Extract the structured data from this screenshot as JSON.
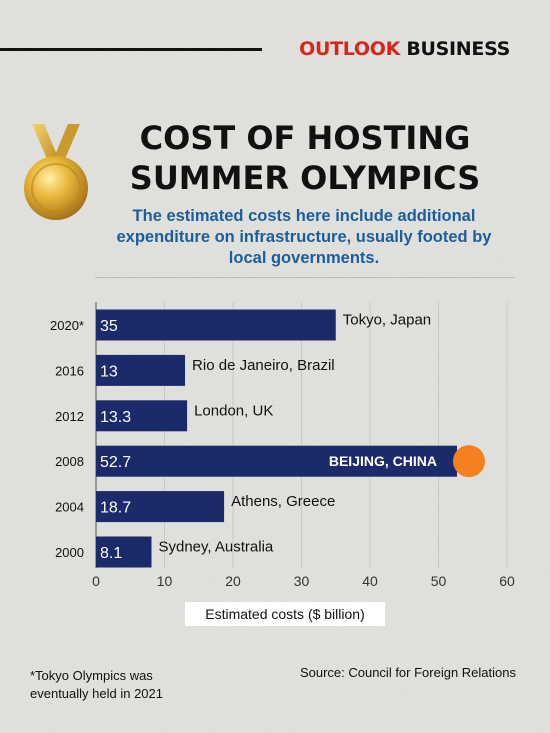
{
  "brand": {
    "part1": "OUTLOOK",
    "part2": " BUSINESS"
  },
  "title_line1": "COST OF HOSTING",
  "title_line2": "SUMMER OLYMPICS",
  "subtitle": "The estimated costs here include additional expenditure on infrastructure, usually footed by local governments.",
  "footnote_line1": "*Tokyo Olympics was",
  "footnote_line2": "eventually held in 2021",
  "source": "Source: Council for Foreign Relations",
  "colors": {
    "bar": "#1b2a6b",
    "highlight": "#f4801f",
    "subtitle": "#1b5e9b",
    "brand_red": "#d7261e"
  },
  "icons": {
    "medal": "gold-medal-icon"
  },
  "chart_data": {
    "type": "bar",
    "orientation": "horizontal",
    "xlabel": "Estimated costs ($ billion)",
    "xlim": [
      0,
      60
    ],
    "xticks": [
      "0",
      "10",
      "20",
      "30",
      "40",
      "50",
      "60"
    ],
    "grid": true,
    "rows": [
      {
        "year": "2020*",
        "value": 35,
        "value_label": "35",
        "city": "Tokyo, Japan",
        "highlight": false
      },
      {
        "year": "2016",
        "value": 13,
        "value_label": "13",
        "city": "Rio de Janeiro, Brazil",
        "highlight": false
      },
      {
        "year": "2012",
        "value": 13.3,
        "value_label": "13.3",
        "city": "London, UK",
        "highlight": false
      },
      {
        "year": "2008",
        "value": 52.7,
        "value_label": "52.7",
        "city": "BEIJING, CHINA",
        "highlight": true
      },
      {
        "year": "2004",
        "value": 18.7,
        "value_label": "18.7",
        "city": "Athens, Greece",
        "highlight": false
      },
      {
        "year": "2000",
        "value": 8.1,
        "value_label": "8.1",
        "city": "Sydney, Australia",
        "highlight": false
      }
    ]
  }
}
